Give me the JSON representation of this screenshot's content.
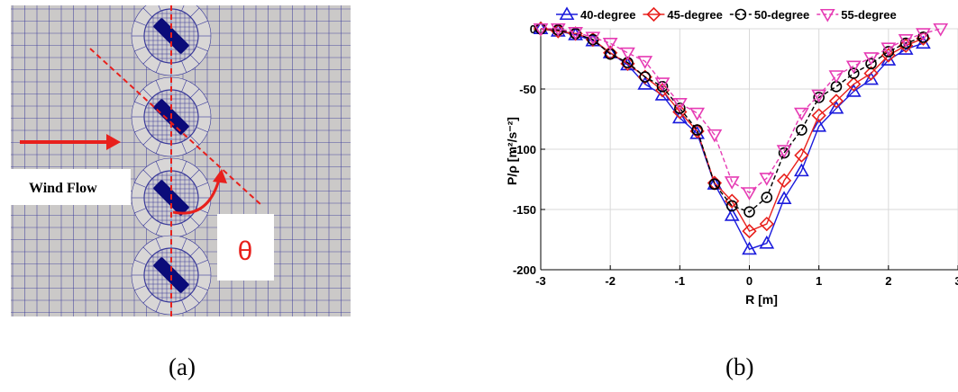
{
  "figure": {
    "panel_a": {
      "caption": "(a)",
      "wind_label": "Wind Flow",
      "angle_symbol": "θ",
      "colors": {
        "mesh_background": "#cbc9c8",
        "mesh_line": "#3a3a9a",
        "blade": "#0b0b7a",
        "annotation": "#e8201c"
      }
    },
    "panel_b": {
      "caption": "(b)"
    }
  },
  "chart_data": {
    "type": "line",
    "xlabel": "R [m]",
    "ylabel": "P/ρ [m²/s⁻²]",
    "xlim": [
      -3,
      3
    ],
    "ylim": [
      -200,
      0
    ],
    "xticks": [
      -3,
      -2,
      -1,
      0,
      1,
      2,
      3
    ],
    "yticks": [
      -200,
      -150,
      -100,
      -50,
      0
    ],
    "grid": true,
    "legend_position": "top",
    "series": [
      {
        "name": "40-degree",
        "color": "#1a1adc",
        "marker": "triangle-up",
        "dash": "solid",
        "x": [
          -3,
          -2.75,
          -2.5,
          -2.25,
          -2,
          -1.75,
          -1.5,
          -1.25,
          -1,
          -0.75,
          -0.5,
          -0.25,
          0,
          0.25,
          0.5,
          0.75,
          1,
          1.25,
          1.5,
          1.75,
          2,
          2.25,
          2.5
        ],
        "y": [
          0,
          -2,
          -5,
          -10,
          -20,
          -30,
          -46,
          -55,
          -74,
          -87,
          -129,
          -155,
          -183,
          -178,
          -141,
          -118,
          -81,
          -66,
          -52,
          -42,
          -26,
          -17,
          -12
        ]
      },
      {
        "name": "45-degree",
        "color": "#e8201c",
        "marker": "diamond",
        "dash": "solid",
        "x": [
          -3,
          -2.75,
          -2.5,
          -2.25,
          -2,
          -1.75,
          -1.5,
          -1.25,
          -1,
          -0.75,
          -0.5,
          -0.25,
          0,
          0.25,
          0.5,
          0.75,
          1,
          1.25,
          1.5,
          1.75,
          2,
          2.25,
          2.5
        ],
        "y": [
          0,
          -2,
          -4,
          -9,
          -20,
          -29,
          -40,
          -51,
          -69,
          -85,
          -128,
          -143,
          -168,
          -162,
          -126,
          -105,
          -72,
          -60,
          -46,
          -37,
          -22,
          -14,
          -8
        ]
      },
      {
        "name": "50-degree",
        "color": "#000000",
        "marker": "circle",
        "dash": "dashed",
        "x": [
          -3,
          -2.75,
          -2.5,
          -2.25,
          -2,
          -1.75,
          -1.5,
          -1.25,
          -1,
          -0.75,
          -0.5,
          -0.25,
          0,
          0.25,
          0.5,
          0.75,
          1,
          1.25,
          1.5,
          1.75,
          2,
          2.25,
          2.5
        ],
        "y": [
          0,
          -1,
          -4,
          -9,
          -21,
          -28,
          -40,
          -48,
          -66,
          -84,
          -129,
          -147,
          -152,
          -140,
          -103,
          -84,
          -57,
          -48,
          -37,
          -29,
          -19,
          -12,
          -7
        ]
      },
      {
        "name": "55-degree",
        "color": "#e63cb4",
        "marker": "triangle-down",
        "dash": "dashed",
        "x": [
          -3,
          -2.75,
          -2.5,
          -2.25,
          -2,
          -1.75,
          -1.5,
          -1.25,
          -1,
          -0.75,
          -0.5,
          -0.25,
          0,
          0.25,
          0.5,
          0.75,
          1,
          1.25,
          1.5,
          1.75,
          2,
          2.25,
          2.5,
          2.75
        ],
        "y": [
          0,
          0,
          -3,
          -7,
          -12,
          -20,
          -27,
          -45,
          -62,
          -70,
          -88,
          -127,
          -136,
          -124,
          -101,
          -70,
          -55,
          -39,
          -31,
          -24,
          -16,
          -9,
          -4,
          0
        ]
      }
    ]
  }
}
